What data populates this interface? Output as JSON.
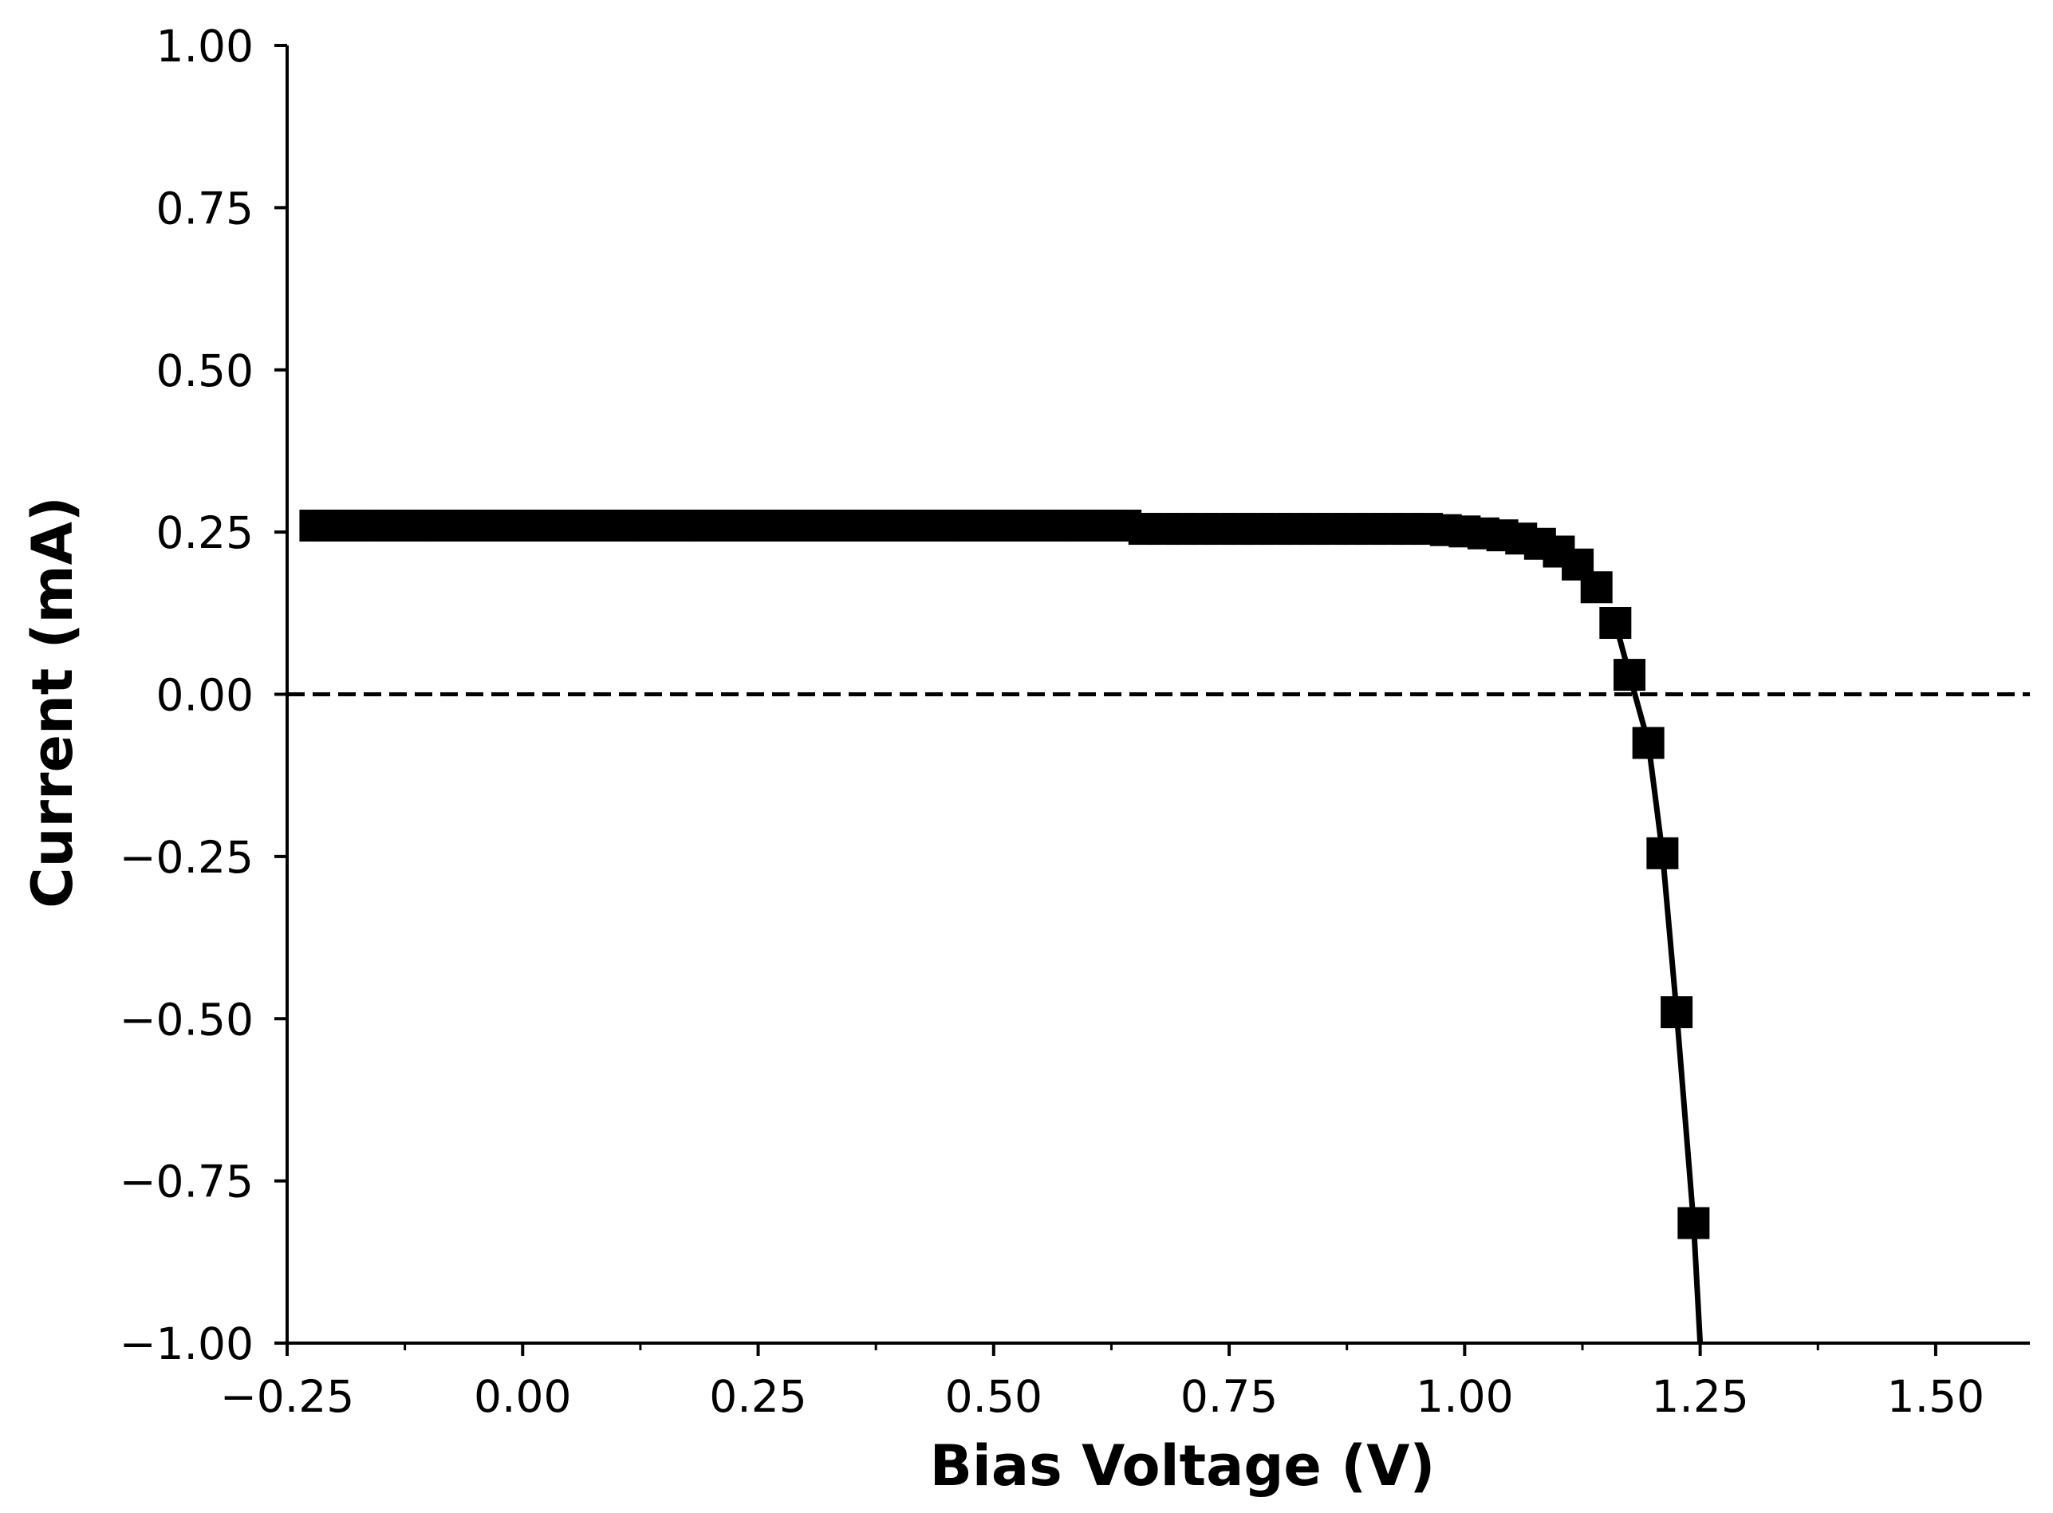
{
  "chart_data": {
    "type": "line",
    "title": "",
    "xlabel": "Bias Voltage (V)",
    "ylabel": "Current (mA)",
    "xlim": [
      -0.25,
      1.6
    ],
    "ylim": [
      -1.0,
      1.0
    ],
    "xticks": [
      -0.25,
      0.0,
      0.25,
      0.5,
      0.75,
      1.0,
      1.25,
      1.5
    ],
    "xtick_labels": [
      "−0.25",
      "0.00",
      "0.25",
      "0.50",
      "0.75",
      "1.00",
      "1.25",
      "1.50"
    ],
    "yticks": [
      -1.0,
      -0.75,
      -0.5,
      -0.25,
      0.0,
      0.25,
      0.5,
      0.75,
      1.0
    ],
    "ytick_labels": [
      "−1.00",
      "−0.75",
      "−0.50",
      "−0.25",
      "0.00",
      "0.25",
      "0.50",
      "0.75",
      "1.00"
    ],
    "grid": false,
    "legend": "none",
    "reference_line": {
      "y": 0.0,
      "style": "dashed",
      "color": "#000000"
    },
    "series": [
      {
        "style": "markers",
        "marker": "square",
        "color": "#000000",
        "x": [
          -0.22,
          -0.2,
          -0.18,
          -0.16,
          -0.14,
          -0.12,
          -0.1,
          -0.08,
          -0.06,
          -0.04,
          -0.02,
          0.0,
          0.02,
          0.04,
          0.06,
          0.08,
          0.1,
          0.12,
          0.14,
          0.16,
          0.18,
          0.2,
          0.22,
          0.24,
          0.26,
          0.28,
          0.3,
          0.32,
          0.34,
          0.36,
          0.38,
          0.4,
          0.42,
          0.44,
          0.46,
          0.48,
          0.5,
          0.52,
          0.54,
          0.56,
          0.58,
          0.6,
          0.62,
          0.64,
          0.66,
          0.68,
          0.7,
          0.72,
          0.74,
          0.76,
          0.78,
          0.8,
          0.82,
          0.84,
          0.86,
          0.88,
          0.9,
          0.92,
          0.94,
          0.96,
          0.98,
          1.0,
          1.02,
          1.04,
          1.06,
          1.08,
          1.1,
          1.12,
          1.14,
          1.16,
          1.175,
          1.195,
          1.21,
          1.225,
          1.243
        ],
        "y": [
          0.26,
          0.26,
          0.26,
          0.26,
          0.26,
          0.26,
          0.26,
          0.26,
          0.26,
          0.26,
          0.26,
          0.26,
          0.26,
          0.26,
          0.26,
          0.26,
          0.26,
          0.26,
          0.26,
          0.26,
          0.26,
          0.26,
          0.26,
          0.26,
          0.26,
          0.26,
          0.26,
          0.26,
          0.26,
          0.26,
          0.26,
          0.26,
          0.26,
          0.26,
          0.26,
          0.26,
          0.26,
          0.26,
          0.26,
          0.26,
          0.26,
          0.26,
          0.26,
          0.26,
          0.255,
          0.255,
          0.255,
          0.255,
          0.255,
          0.255,
          0.255,
          0.255,
          0.255,
          0.255,
          0.255,
          0.255,
          0.255,
          0.255,
          0.255,
          0.255,
          0.253,
          0.251,
          0.248,
          0.245,
          0.24,
          0.232,
          0.22,
          0.2,
          0.165,
          0.11,
          0.03,
          -0.075,
          -0.245,
          -0.49,
          -0.815
        ]
      },
      {
        "style": "line",
        "color": "#000000",
        "x": [
          1.16,
          1.175,
          1.195,
          1.21,
          1.225,
          1.243,
          1.25
        ],
        "y": [
          0.11,
          0.03,
          -0.075,
          -0.245,
          -0.49,
          -0.815,
          -1.0
        ]
      }
    ]
  }
}
